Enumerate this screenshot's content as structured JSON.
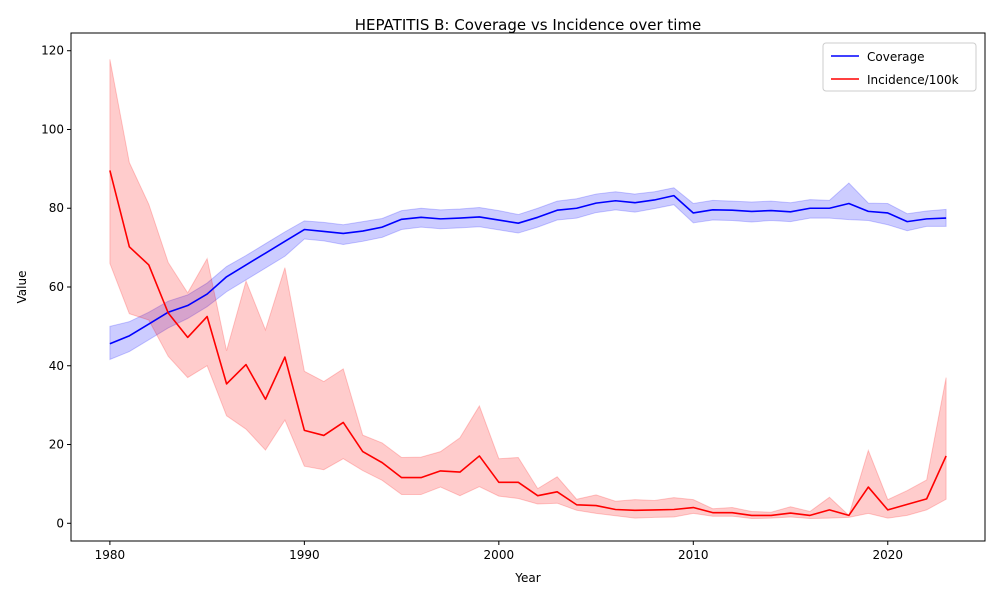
{
  "chart_data": {
    "type": "line",
    "title": "HEPATITIS B: Coverage vs Incidence over time",
    "xlabel": "Year",
    "ylabel": "Value",
    "xlim": [
      1978,
      2025
    ],
    "ylim": [
      -4.5,
      124.5
    ],
    "xticks": [
      1980,
      1990,
      2000,
      2010,
      2020
    ],
    "yticks": [
      0,
      20,
      40,
      60,
      80,
      100,
      120
    ],
    "grid": false,
    "legend_position": "top-right",
    "x": [
      1980,
      1981,
      1982,
      1983,
      1984,
      1985,
      1986,
      1987,
      1988,
      1989,
      1990,
      1991,
      1992,
      1993,
      1994,
      1995,
      1996,
      1997,
      1998,
      1999,
      2000,
      2001,
      2002,
      2003,
      2004,
      2005,
      2006,
      2007,
      2008,
      2009,
      2010,
      2011,
      2012,
      2013,
      2014,
      2015,
      2016,
      2017,
      2018,
      2019,
      2020,
      2021,
      2022,
      2023
    ],
    "series": [
      {
        "name": "Coverage",
        "color": "#0000ff",
        "band_color": "#0000ff",
        "values": [
          45.6,
          47.6,
          50.6,
          53.6,
          55.3,
          58.2,
          62.6,
          65.6,
          68.6,
          71.6,
          74.6,
          74.1,
          73.6,
          74.2,
          75.2,
          77.2,
          77.7,
          77.3,
          77.5,
          77.8,
          77.0,
          76.2,
          77.7,
          79.5,
          80.0,
          81.3,
          81.9,
          81.4,
          82.1,
          83.2,
          78.8,
          79.6,
          79.5,
          79.2,
          79.4,
          79.1,
          80.0,
          80.0,
          81.2,
          79.2,
          78.8,
          76.6,
          77.3,
          77.5
        ],
        "lower": [
          41.6,
          43.6,
          46.6,
          49.6,
          52.0,
          55.0,
          58.8,
          61.8,
          64.8,
          67.8,
          72.2,
          71.7,
          70.8,
          71.6,
          72.6,
          74.6,
          75.2,
          74.8,
          75.0,
          75.3,
          74.5,
          73.7,
          75.2,
          77.0,
          77.5,
          78.9,
          79.6,
          79.0,
          79.9,
          80.9,
          76.3,
          77.0,
          76.9,
          76.5,
          76.9,
          76.6,
          77.5,
          77.5,
          77.1,
          76.9,
          75.8,
          74.3,
          75.4,
          75.4
        ],
        "upper": [
          50.0,
          51.2,
          53.6,
          56.4,
          58.0,
          61.0,
          65.2,
          68.0,
          71.0,
          74.0,
          76.8,
          76.4,
          75.8,
          76.6,
          77.4,
          79.4,
          80.0,
          79.6,
          79.8,
          80.2,
          79.4,
          78.4,
          80.0,
          81.8,
          82.4,
          83.6,
          84.2,
          83.6,
          84.2,
          85.2,
          81.2,
          82.0,
          81.8,
          81.6,
          81.8,
          81.4,
          82.2,
          82.0,
          86.4,
          81.3,
          81.2,
          78.6,
          79.3,
          79.7
        ]
      },
      {
        "name": "Incidence/100k",
        "color": "#ff0000",
        "band_color": "#ff0000",
        "values": [
          89.6,
          70.2,
          65.6,
          53.4,
          47.2,
          52.5,
          35.4,
          40.3,
          31.5,
          42.2,
          23.6,
          22.3,
          25.6,
          18.2,
          15.4,
          11.6,
          11.6,
          13.3,
          13.0,
          17.1,
          10.4,
          10.4,
          7.0,
          8.0,
          4.7,
          4.5,
          3.5,
          3.3,
          3.4,
          3.5,
          4.0,
          2.7,
          2.7,
          2.0,
          2.0,
          2.6,
          2.0,
          3.4,
          2.0,
          9.2,
          3.4,
          4.8,
          6.2,
          17.1
        ],
        "lower": [
          66.0,
          53.2,
          51.6,
          42.4,
          37.0,
          40.0,
          27.3,
          23.9,
          18.6,
          26.2,
          14.5,
          13.6,
          16.4,
          13.4,
          10.9,
          7.3,
          7.3,
          9.2,
          7.0,
          9.3,
          6.9,
          6.3,
          4.9,
          5.1,
          3.3,
          2.5,
          1.9,
          1.3,
          1.5,
          1.6,
          2.5,
          1.8,
          1.8,
          1.2,
          1.3,
          1.6,
          1.2,
          1.3,
          1.5,
          2.5,
          1.3,
          2.0,
          3.4,
          6.1
        ],
        "upper": [
          117.8,
          91.6,
          81.0,
          66.2,
          58.5,
          67.2,
          43.8,
          61.5,
          49.1,
          64.9,
          38.6,
          36.0,
          39.2,
          22.4,
          20.4,
          16.7,
          16.8,
          18.2,
          21.7,
          29.8,
          16.4,
          16.7,
          8.8,
          11.8,
          6.1,
          7.2,
          5.6,
          6.0,
          5.8,
          6.5,
          6.0,
          3.7,
          4.0,
          3.0,
          2.8,
          4.2,
          3.0,
          6.6,
          2.0,
          18.5,
          6.0,
          8.3,
          11.0,
          37.0
        ]
      }
    ]
  }
}
